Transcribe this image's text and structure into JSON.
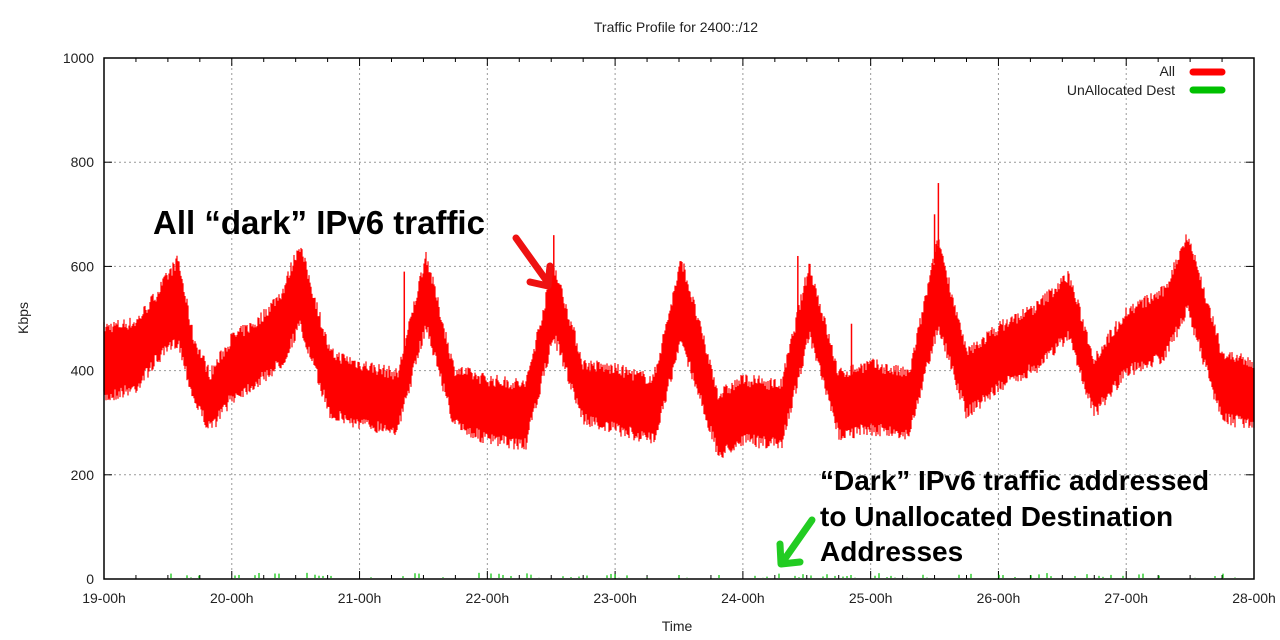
{
  "chart_data": {
    "type": "area",
    "title": "Traffic Profile for 2400::/12",
    "xlabel": "Time",
    "ylabel": "Kbps",
    "ylim": [
      0,
      1000
    ],
    "yticks": [
      "0",
      "200",
      "400",
      "600",
      "800",
      "1000"
    ],
    "xticks": [
      "19-00h",
      "20-00h",
      "21-00h",
      "22-00h",
      "23-00h",
      "24-00h",
      "25-00h",
      "26-00h",
      "27-00h",
      "28-00h"
    ],
    "grid": true,
    "legend_position": "top-right",
    "series": [
      {
        "name": "All",
        "color": "#ff0000",
        "x_days_from_19-00h": [
          0,
          0.25,
          0.4,
          0.58,
          0.7,
          0.83,
          1.0,
          1.2,
          1.4,
          1.53,
          1.77,
          2.0,
          2.3,
          2.52,
          2.74,
          3.0,
          3.3,
          3.52,
          3.75,
          4.0,
          4.3,
          4.52,
          4.81,
          5.0,
          5.3,
          5.52,
          5.75,
          6.0,
          6.3,
          6.53,
          6.75,
          7.0,
          7.3,
          7.55,
          7.75,
          8.0,
          8.3,
          8.48,
          8.75,
          9.0
        ],
        "low": [
          360,
          380,
          430,
          470,
          360,
          300,
          360,
          390,
          430,
          500,
          330,
          310,
          300,
          500,
          310,
          280,
          270,
          480,
          320,
          300,
          280,
          470,
          250,
          280,
          270,
          480,
          290,
          300,
          290,
          500,
          330,
          380,
          420,
          480,
          330,
          410,
          440,
          530,
          320,
          310
        ],
        "high": [
          470,
          480,
          530,
          600,
          450,
          380,
          450,
          480,
          540,
          630,
          420,
          400,
          380,
          610,
          390,
          370,
          360,
          590,
          400,
          390,
          370,
          600,
          340,
          370,
          360,
          590,
          380,
          400,
          380,
          640,
          420,
          470,
          510,
          570,
          410,
          500,
          540,
          650,
          420,
          400
        ]
      },
      {
        "name": "UnAllocated Dest",
        "color": "#00c000",
        "approx_range": [
          0,
          10
        ]
      }
    ],
    "annotations": [
      {
        "text": "All “dark” IPv6 traffic",
        "color": "#000000"
      },
      {
        "text_lines": [
          "“Dark” IPv6 traffic addressed",
          "to Unallocated Destination",
          "Addresses"
        ],
        "color": "#000000"
      }
    ]
  }
}
